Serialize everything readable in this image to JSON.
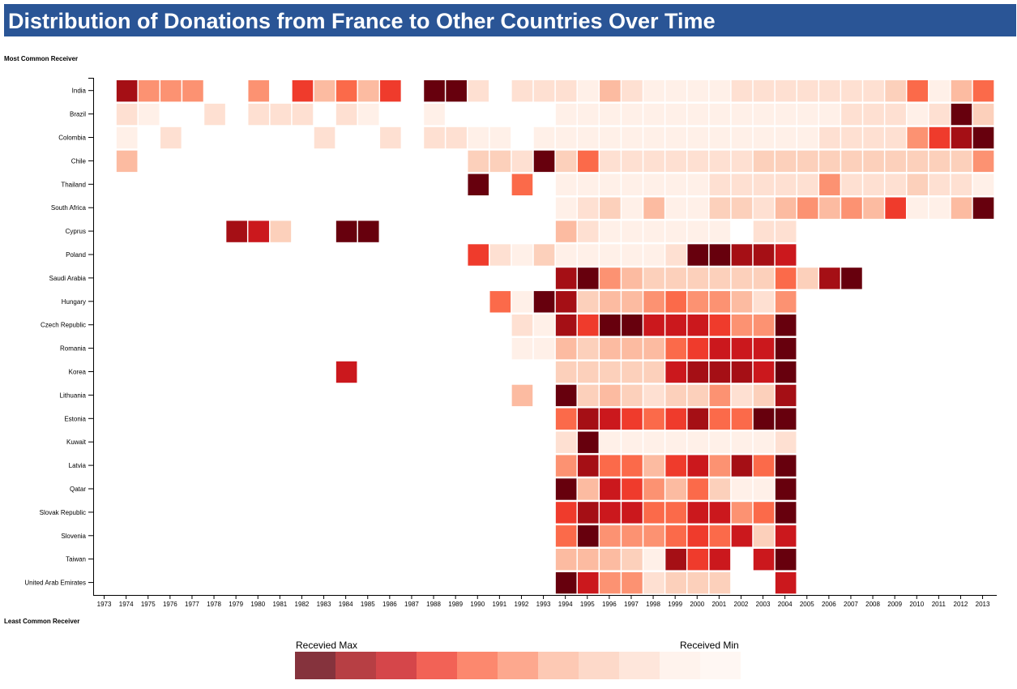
{
  "title": "Distribution of Donations from France to Other Countries Over Time",
  "top_label": "Most Common Receiver",
  "bottom_label": "Least Common Receiver",
  "legend": {
    "max_label": "Recevied Max",
    "min_label": "Received Min",
    "colors": [
      "#67000d",
      "#a50f15",
      "#cb181d",
      "#ef3b2c",
      "#fb6a4a",
      "#fc9272",
      "#fcbba1",
      "#fcd0bb",
      "#fee0d2",
      "#fff0e8",
      "#fff5f0"
    ],
    "opacity": 0.8
  },
  "chart_data": {
    "type": "heatmap",
    "x": [
      "1973",
      "1974",
      "1975",
      "1976",
      "1977",
      "1978",
      "1979",
      "1980",
      "1981",
      "1982",
      "1983",
      "1984",
      "1985",
      "1986",
      "1987",
      "1988",
      "1989",
      "1990",
      "1991",
      "1992",
      "1993",
      "1994",
      "1995",
      "1996",
      "1997",
      "1998",
      "1999",
      "2000",
      "2001",
      "2002",
      "2003",
      "2004",
      "2005",
      "2006",
      "2007",
      "2008",
      "2009",
      "2010",
      "2011",
      "2012",
      "2013"
    ],
    "y": [
      "India",
      "Brazil",
      "Colombia",
      "Chile",
      "Thailand",
      "South Africa",
      "Cyprus",
      "Poland",
      "Saudi Arabia",
      "Hungary",
      "Czech Republic",
      "Romania",
      "Korea",
      "Lithuania",
      "Estonia",
      "Kuwait",
      "Latvia",
      "Qatar",
      "Slovak Republic",
      "Slovenia",
      "Taiwan",
      "United Arab Emirates"
    ],
    "intensity_scale": "0 = received min, 10 = received max; null = no donation",
    "values": [
      [
        null,
        9,
        5,
        5,
        5,
        null,
        null,
        5,
        null,
        7,
        4,
        6,
        4,
        7,
        null,
        10,
        10,
        2,
        null,
        2,
        2,
        2,
        1,
        4,
        2,
        1,
        1,
        1,
        1,
        2,
        2,
        2,
        2,
        2,
        2,
        2,
        3,
        6,
        1,
        4,
        6
      ],
      [
        null,
        2,
        1,
        null,
        null,
        2,
        null,
        2,
        2,
        2,
        null,
        2,
        1,
        null,
        null,
        1,
        null,
        null,
        null,
        null,
        null,
        1,
        1,
        1,
        1,
        1,
        1,
        1,
        1,
        1,
        1,
        1,
        1,
        1,
        2,
        2,
        2,
        1,
        2,
        10,
        3
      ],
      [
        null,
        1,
        null,
        2,
        null,
        null,
        null,
        null,
        null,
        null,
        2,
        null,
        null,
        2,
        null,
        2,
        2,
        1,
        1,
        null,
        1,
        1,
        1,
        1,
        1,
        1,
        1,
        1,
        1,
        1,
        1,
        1,
        1,
        2,
        2,
        2,
        2,
        5,
        7,
        9,
        10
      ],
      [
        null,
        4,
        null,
        null,
        null,
        null,
        null,
        null,
        null,
        null,
        null,
        null,
        null,
        null,
        null,
        null,
        null,
        3,
        3,
        2,
        10,
        3,
        6,
        2,
        2,
        2,
        2,
        2,
        2,
        2,
        3,
        3,
        3,
        3,
        3,
        3,
        3,
        3,
        3,
        3,
        5
      ],
      [
        null,
        null,
        null,
        null,
        null,
        null,
        null,
        null,
        null,
        null,
        null,
        null,
        null,
        null,
        null,
        null,
        null,
        10,
        null,
        6,
        null,
        1,
        1,
        1,
        1,
        1,
        1,
        1,
        2,
        2,
        2,
        2,
        2,
        5,
        2,
        2,
        2,
        3,
        2,
        2,
        1
      ],
      [
        null,
        null,
        null,
        null,
        null,
        null,
        null,
        null,
        null,
        null,
        null,
        null,
        null,
        null,
        null,
        null,
        null,
        null,
        null,
        null,
        null,
        1,
        2,
        3,
        1,
        4,
        1,
        1,
        3,
        3,
        2,
        4,
        5,
        4,
        5,
        4,
        7,
        1,
        1,
        4,
        10
      ],
      [
        null,
        null,
        null,
        null,
        null,
        null,
        9,
        8,
        3,
        null,
        null,
        10,
        10,
        null,
        null,
        null,
        null,
        null,
        null,
        null,
        null,
        4,
        2,
        1,
        1,
        1,
        1,
        1,
        1,
        null,
        2,
        2,
        null,
        null,
        null,
        null,
        null,
        null,
        null,
        null,
        null
      ],
      [
        null,
        null,
        null,
        null,
        null,
        null,
        null,
        null,
        null,
        null,
        null,
        null,
        null,
        null,
        null,
        null,
        null,
        7,
        2,
        1,
        3,
        1,
        1,
        1,
        1,
        1,
        2,
        10,
        10,
        9,
        9,
        8,
        null,
        null,
        null,
        null,
        null,
        null,
        null,
        null,
        null
      ],
      [
        null,
        null,
        null,
        null,
        null,
        null,
        null,
        null,
        null,
        null,
        null,
        null,
        null,
        null,
        null,
        null,
        null,
        null,
        null,
        null,
        null,
        9,
        10,
        5,
        4,
        3,
        3,
        3,
        3,
        3,
        3,
        6,
        3,
        9,
        10,
        null,
        null,
        null,
        null,
        null,
        null
      ],
      [
        null,
        null,
        null,
        null,
        null,
        null,
        null,
        null,
        null,
        null,
        null,
        null,
        null,
        null,
        null,
        null,
        null,
        null,
        6,
        1,
        10,
        9,
        3,
        4,
        4,
        5,
        6,
        5,
        5,
        4,
        2,
        5,
        null,
        null,
        null,
        null,
        null,
        null,
        null,
        null,
        null
      ],
      [
        null,
        null,
        null,
        null,
        null,
        null,
        null,
        null,
        null,
        null,
        null,
        null,
        null,
        null,
        null,
        null,
        null,
        null,
        null,
        2,
        1,
        9,
        7,
        10,
        10,
        8,
        8,
        8,
        7,
        5,
        5,
        10,
        null,
        null,
        null,
        null,
        null,
        null,
        null,
        null,
        null
      ],
      [
        null,
        null,
        null,
        null,
        null,
        null,
        null,
        null,
        null,
        null,
        null,
        null,
        null,
        null,
        null,
        null,
        null,
        null,
        null,
        1,
        1,
        4,
        3,
        4,
        4,
        4,
        6,
        7,
        8,
        8,
        8,
        10,
        null,
        null,
        null,
        null,
        null,
        null,
        null,
        null,
        null
      ],
      [
        null,
        null,
        null,
        null,
        null,
        null,
        null,
        null,
        null,
        null,
        null,
        8,
        null,
        null,
        null,
        null,
        null,
        null,
        null,
        null,
        null,
        3,
        3,
        3,
        3,
        3,
        8,
        9,
        9,
        9,
        8,
        10,
        null,
        null,
        null,
        null,
        null,
        null,
        null,
        null,
        null
      ],
      [
        null,
        null,
        null,
        null,
        null,
        null,
        null,
        null,
        null,
        null,
        null,
        null,
        null,
        null,
        null,
        null,
        null,
        null,
        null,
        4,
        null,
        10,
        3,
        4,
        3,
        2,
        3,
        3,
        5,
        2,
        3,
        9,
        null,
        null,
        null,
        null,
        null,
        null,
        null,
        null,
        null
      ],
      [
        null,
        null,
        null,
        null,
        null,
        null,
        null,
        null,
        null,
        null,
        null,
        null,
        null,
        null,
        null,
        null,
        null,
        null,
        null,
        null,
        null,
        6,
        9,
        8,
        7,
        6,
        7,
        9,
        6,
        6,
        10,
        10,
        null,
        null,
        null,
        null,
        null,
        null,
        null,
        null,
        null
      ],
      [
        null,
        null,
        null,
        null,
        null,
        null,
        null,
        null,
        null,
        null,
        null,
        null,
        null,
        null,
        null,
        null,
        null,
        null,
        null,
        null,
        null,
        2,
        10,
        1,
        1,
        1,
        1,
        1,
        1,
        1,
        1,
        2,
        null,
        null,
        null,
        null,
        null,
        null,
        null,
        null,
        null
      ],
      [
        null,
        null,
        null,
        null,
        null,
        null,
        null,
        null,
        null,
        null,
        null,
        null,
        null,
        null,
        null,
        null,
        null,
        null,
        null,
        null,
        null,
        5,
        9,
        6,
        6,
        4,
        7,
        8,
        5,
        9,
        6,
        10,
        null,
        null,
        null,
        null,
        null,
        null,
        null,
        null,
        null
      ],
      [
        null,
        null,
        null,
        null,
        null,
        null,
        null,
        null,
        null,
        null,
        null,
        null,
        null,
        null,
        null,
        null,
        null,
        null,
        null,
        null,
        null,
        10,
        4,
        8,
        7,
        5,
        4,
        6,
        3,
        1,
        1,
        10,
        null,
        null,
        null,
        null,
        null,
        null,
        null,
        null,
        null
      ],
      [
        null,
        null,
        null,
        null,
        null,
        null,
        null,
        null,
        null,
        null,
        null,
        null,
        null,
        null,
        null,
        null,
        null,
        null,
        null,
        null,
        null,
        7,
        9,
        8,
        8,
        6,
        6,
        8,
        8,
        5,
        6,
        10,
        null,
        null,
        null,
        null,
        null,
        null,
        null,
        null,
        null
      ],
      [
        null,
        null,
        null,
        null,
        null,
        null,
        null,
        null,
        null,
        null,
        null,
        null,
        null,
        null,
        null,
        null,
        null,
        null,
        null,
        null,
        null,
        6,
        10,
        5,
        5,
        5,
        6,
        7,
        6,
        8,
        3,
        8,
        null,
        null,
        null,
        null,
        null,
        null,
        null,
        null,
        null
      ],
      [
        null,
        null,
        null,
        null,
        null,
        null,
        null,
        null,
        null,
        null,
        null,
        null,
        null,
        null,
        null,
        null,
        null,
        null,
        null,
        null,
        null,
        4,
        4,
        4,
        3,
        1,
        9,
        7,
        8,
        null,
        8,
        10,
        null,
        null,
        null,
        null,
        null,
        null,
        null,
        null,
        null
      ],
      [
        null,
        null,
        null,
        null,
        null,
        null,
        null,
        null,
        null,
        null,
        null,
        null,
        null,
        null,
        null,
        null,
        null,
        null,
        null,
        null,
        null,
        10,
        8,
        5,
        5,
        2,
        3,
        3,
        3,
        null,
        null,
        8,
        null,
        null,
        null,
        null,
        null,
        null,
        null,
        null,
        null
      ]
    ],
    "colors": [
      "#fff5f0",
      "#fff0e8",
      "#fee0d2",
      "#fcd0bb",
      "#fcbba1",
      "#fc9272",
      "#fb6a4a",
      "#ef3b2c",
      "#cb181d",
      "#a50f15",
      "#67000d"
    ],
    "grid": false,
    "legend_placement": "bottom-center"
  }
}
